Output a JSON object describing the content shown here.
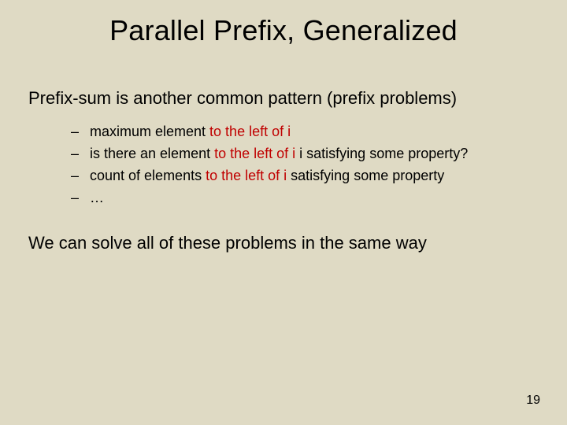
{
  "colors": {
    "background": "#dfdac4",
    "text": "#000000",
    "highlight": "#c00000"
  },
  "title": "Parallel Prefix, Generalized",
  "lead": "Prefix-sum is another common pattern (prefix problems)",
  "bullets": [
    {
      "pre": "maximum element ",
      "hl": "to the left of i",
      "post": ""
    },
    {
      "pre": "is there an element ",
      "hl": "to the left of i",
      "post": " i satisfying some property?"
    },
    {
      "pre": "count of elements ",
      "hl": "to the left of i",
      "post": " satisfying some property"
    },
    {
      "pre": "…",
      "hl": "",
      "post": ""
    }
  ],
  "dash": "–",
  "closing": "We can solve all of these problems in the same way",
  "page_number": "19"
}
